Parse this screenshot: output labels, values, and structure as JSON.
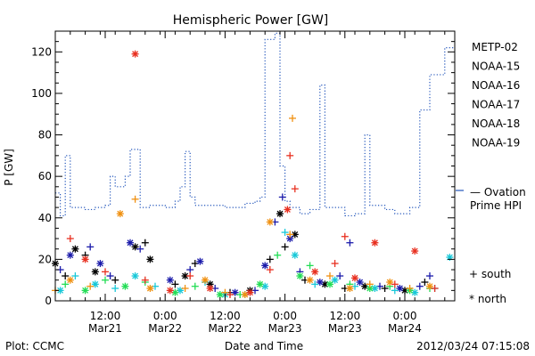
{
  "chart_data": {
    "type": "scatter",
    "title": "Hemispheric Power [GW]",
    "xlabel": "Date and Time",
    "ylabel": "P [GW]",
    "ylim": [
      0,
      130
    ],
    "y_ticks": [
      0,
      20,
      40,
      60,
      80,
      100,
      120
    ],
    "xlim": [
      "2012-03-21T02:00",
      "2012-03-24T10:00"
    ],
    "x_ticks": [
      {
        "t": "2012-03-21T12:00",
        "time": "12:00",
        "date": "Mar21"
      },
      {
        "t": "2012-03-22T00:00",
        "time": "0:00",
        "date": "Mar22"
      },
      {
        "t": "2012-03-22T12:00",
        "time": "12:00",
        "date": "Mar22"
      },
      {
        "t": "2012-03-23T00:00",
        "time": "0:00",
        "date": "Mar23"
      },
      {
        "t": "2012-03-23T12:00",
        "time": "12:00",
        "date": "Mar23"
      },
      {
        "t": "2012-03-24T00:00",
        "time": "0:00",
        "date": "Mar24"
      }
    ],
    "grid": false,
    "legend_position": "right",
    "footer_left": "Plot: CCMC",
    "footer_right": "2012/03/24 07:15:08",
    "marker_legend": [
      {
        "symbol": "+",
        "label": "south"
      },
      {
        "symbol": "*",
        "label": "north"
      }
    ],
    "series": [
      {
        "name": "METP-02",
        "color": "#000000",
        "points": [
          [
            "2012-03-21T02:00",
            18,
            "*"
          ],
          [
            "2012-03-21T04:00",
            12,
            "+"
          ],
          [
            "2012-03-21T06:00",
            25,
            "*"
          ],
          [
            "2012-03-21T08:00",
            22,
            "+"
          ],
          [
            "2012-03-21T10:00",
            14,
            "*"
          ],
          [
            "2012-03-21T14:00",
            10,
            "+"
          ],
          [
            "2012-03-21T18:00",
            26,
            "*"
          ],
          [
            "2012-03-21T20:00",
            28,
            "+"
          ],
          [
            "2012-03-21T21:00",
            20,
            "*"
          ],
          [
            "2012-03-22T02:00",
            8,
            "+"
          ],
          [
            "2012-03-22T04:00",
            12,
            "*"
          ],
          [
            "2012-03-22T06:00",
            18,
            "+"
          ],
          [
            "2012-03-22T09:00",
            8,
            "*"
          ],
          [
            "2012-03-22T13:00",
            4,
            "+"
          ],
          [
            "2012-03-22T17:00",
            5,
            "*"
          ],
          [
            "2012-03-22T21:00",
            20,
            "+"
          ],
          [
            "2012-03-22T23:00",
            42,
            "*"
          ],
          [
            "2012-03-23T00:00",
            26,
            "+"
          ],
          [
            "2012-03-23T02:00",
            32,
            "*"
          ],
          [
            "2012-03-23T04:00",
            10,
            "+"
          ],
          [
            "2012-03-23T08:00",
            8,
            "*"
          ],
          [
            "2012-03-23T12:00",
            6,
            "+"
          ],
          [
            "2012-03-23T16:00",
            7,
            "*"
          ],
          [
            "2012-03-23T20:00",
            6,
            "+"
          ],
          [
            "2012-03-24T00:00",
            5,
            "*"
          ],
          [
            "2012-03-24T04:00",
            9,
            "+"
          ]
        ]
      },
      {
        "name": "NOAA-15",
        "color": "#1a1aaa",
        "points": [
          [
            "2012-03-21T03:00",
            15,
            "+"
          ],
          [
            "2012-03-21T05:00",
            22,
            "*"
          ],
          [
            "2012-03-21T09:00",
            26,
            "+"
          ],
          [
            "2012-03-21T11:00",
            18,
            "*"
          ],
          [
            "2012-03-21T13:00",
            12,
            "+"
          ],
          [
            "2012-03-21T17:00",
            28,
            "*"
          ],
          [
            "2012-03-21T19:00",
            25,
            "+"
          ],
          [
            "2012-03-22T01:00",
            10,
            "*"
          ],
          [
            "2012-03-22T05:00",
            15,
            "+"
          ],
          [
            "2012-03-22T07:00",
            19,
            "*"
          ],
          [
            "2012-03-22T10:00",
            6,
            "+"
          ],
          [
            "2012-03-22T14:00",
            4,
            "*"
          ],
          [
            "2012-03-22T18:00",
            5,
            "+"
          ],
          [
            "2012-03-22T20:00",
            17,
            "*"
          ],
          [
            "2012-03-22T22:00",
            38,
            "+"
          ],
          [
            "2012-03-22T23:30",
            50,
            "+"
          ],
          [
            "2012-03-23T01:00",
            30,
            "*"
          ],
          [
            "2012-03-23T03:00",
            14,
            "+"
          ],
          [
            "2012-03-23T07:00",
            9,
            "*"
          ],
          [
            "2012-03-23T11:00",
            12,
            "+"
          ],
          [
            "2012-03-23T13:00",
            28,
            "+"
          ],
          [
            "2012-03-23T15:00",
            9,
            "*"
          ],
          [
            "2012-03-23T19:00",
            7,
            "+"
          ],
          [
            "2012-03-23T23:00",
            6,
            "*"
          ],
          [
            "2012-03-24T03:00",
            7,
            "+"
          ],
          [
            "2012-03-24T05:00",
            12,
            "+"
          ]
        ]
      },
      {
        "name": "NOAA-16",
        "color": "#18c8d8",
        "points": [
          [
            "2012-03-21T03:00",
            5,
            "*"
          ],
          [
            "2012-03-21T06:00",
            12,
            "+"
          ],
          [
            "2012-03-21T10:00",
            8,
            "*"
          ],
          [
            "2012-03-21T14:00",
            6,
            "+"
          ],
          [
            "2012-03-21T18:00",
            12,
            "*"
          ],
          [
            "2012-03-21T22:00",
            7,
            "+"
          ],
          [
            "2012-03-22T03:00",
            5,
            "*"
          ],
          [
            "2012-03-22T08:00",
            9,
            "+"
          ],
          [
            "2012-03-22T12:00",
            3,
            "*"
          ],
          [
            "2012-03-22T16:00",
            3,
            "+"
          ],
          [
            "2012-03-22T20:00",
            7,
            "*"
          ],
          [
            "2012-03-23T00:00",
            33,
            "+"
          ],
          [
            "2012-03-23T02:00",
            22,
            "*"
          ],
          [
            "2012-03-23T06:00",
            8,
            "+"
          ],
          [
            "2012-03-23T10:00",
            10,
            "*"
          ],
          [
            "2012-03-23T14:00",
            7,
            "+"
          ],
          [
            "2012-03-23T18:00",
            6,
            "*"
          ],
          [
            "2012-03-23T22:00",
            5,
            "+"
          ],
          [
            "2012-03-24T02:00",
            4,
            "*"
          ],
          [
            "2012-03-24T06:00",
            6,
            "+"
          ],
          [
            "2012-03-24T09:00",
            21,
            "*"
          ]
        ]
      },
      {
        "name": "NOAA-17",
        "color": "#22dd55",
        "points": [
          [
            "2012-03-21T04:00",
            8,
            "+"
          ],
          [
            "2012-03-21T08:00",
            5,
            "*"
          ],
          [
            "2012-03-21T12:00",
            10,
            "+"
          ],
          [
            "2012-03-21T16:00",
            7,
            "*"
          ],
          [
            "2012-03-21T20:00",
            9,
            "+"
          ],
          [
            "2012-03-22T02:00",
            4,
            "*"
          ],
          [
            "2012-03-22T06:00",
            7,
            "+"
          ],
          [
            "2012-03-22T11:00",
            3,
            "*"
          ],
          [
            "2012-03-22T15:00",
            3,
            "+"
          ],
          [
            "2012-03-22T19:00",
            8,
            "*"
          ],
          [
            "2012-03-22T22:30",
            22,
            "+"
          ],
          [
            "2012-03-23T03:00",
            12,
            "*"
          ],
          [
            "2012-03-23T05:00",
            17,
            "+"
          ],
          [
            "2012-03-23T09:00",
            8,
            "*"
          ],
          [
            "2012-03-23T13:00",
            8,
            "+"
          ],
          [
            "2012-03-23T17:00",
            6,
            "*"
          ],
          [
            "2012-03-23T21:00",
            7,
            "+"
          ],
          [
            "2012-03-24T01:00",
            5,
            "*"
          ],
          [
            "2012-03-24T05:00",
            6,
            "+"
          ]
        ]
      },
      {
        "name": "NOAA-18",
        "color": "#f09010",
        "points": [
          [
            "2012-03-21T02:00",
            5,
            "+"
          ],
          [
            "2012-03-21T05:00",
            10,
            "*"
          ],
          [
            "2012-03-21T09:00",
            7,
            "+"
          ],
          [
            "2012-03-21T15:00",
            42,
            "*"
          ],
          [
            "2012-03-21T18:00",
            49,
            "+"
          ],
          [
            "2012-03-21T21:00",
            6,
            "*"
          ],
          [
            "2012-03-22T04:00",
            6,
            "+"
          ],
          [
            "2012-03-22T08:00",
            10,
            "*"
          ],
          [
            "2012-03-22T12:00",
            4,
            "+"
          ],
          [
            "2012-03-22T16:00",
            3,
            "*"
          ],
          [
            "2012-03-22T21:00",
            38,
            "*"
          ],
          [
            "2012-03-23T01:00",
            32,
            "+"
          ],
          [
            "2012-03-23T01:30",
            88,
            "+"
          ],
          [
            "2012-03-23T05:00",
            10,
            "*"
          ],
          [
            "2012-03-23T09:00",
            12,
            "+"
          ],
          [
            "2012-03-23T13:00",
            6,
            "*"
          ],
          [
            "2012-03-23T17:00",
            8,
            "+"
          ],
          [
            "2012-03-23T21:00",
            9,
            "*"
          ],
          [
            "2012-03-24T01:00",
            6,
            "+"
          ],
          [
            "2012-03-24T05:00",
            7,
            "*"
          ]
        ]
      },
      {
        "name": "NOAA-19",
        "color": "#e83020",
        "points": [
          [
            "2012-03-21T05:00",
            30,
            "+"
          ],
          [
            "2012-03-21T08:00",
            20,
            "*"
          ],
          [
            "2012-03-21T12:00",
            14,
            "+"
          ],
          [
            "2012-03-21T18:00",
            119,
            "*"
          ],
          [
            "2012-03-21T20:00",
            10,
            "+"
          ],
          [
            "2012-03-22T01:00",
            5,
            "*"
          ],
          [
            "2012-03-22T05:00",
            12,
            "+"
          ],
          [
            "2012-03-22T09:00",
            6,
            "*"
          ],
          [
            "2012-03-22T13:00",
            3,
            "+"
          ],
          [
            "2012-03-22T17:00",
            4,
            "*"
          ],
          [
            "2012-03-22T21:00",
            15,
            "+"
          ],
          [
            "2012-03-23T00:30",
            44,
            "*"
          ],
          [
            "2012-03-23T01:00",
            70,
            "+"
          ],
          [
            "2012-03-23T02:00",
            54,
            "+"
          ],
          [
            "2012-03-23T06:00",
            14,
            "*"
          ],
          [
            "2012-03-23T10:00",
            18,
            "+"
          ],
          [
            "2012-03-23T12:00",
            31,
            "+"
          ],
          [
            "2012-03-23T14:00",
            11,
            "*"
          ],
          [
            "2012-03-23T18:00",
            28,
            "*"
          ],
          [
            "2012-03-23T22:00",
            8,
            "+"
          ],
          [
            "2012-03-24T02:00",
            24,
            "*"
          ],
          [
            "2012-03-24T06:00",
            6,
            "+"
          ]
        ]
      }
    ],
    "ovation": {
      "name": "— Ovation Prime HPI",
      "color": "#2255bb",
      "points": [
        [
          "2012-03-21T02:00",
          52
        ],
        [
          "2012-03-21T03:00",
          41
        ],
        [
          "2012-03-21T04:00",
          70
        ],
        [
          "2012-03-21T05:00",
          45
        ],
        [
          "2012-03-21T08:00",
          44
        ],
        [
          "2012-03-21T10:00",
          45
        ],
        [
          "2012-03-21T12:00",
          46
        ],
        [
          "2012-03-21T13:00",
          60
        ],
        [
          "2012-03-21T14:00",
          55
        ],
        [
          "2012-03-21T16:00",
          60
        ],
        [
          "2012-03-21T17:00",
          73
        ],
        [
          "2012-03-21T19:00",
          45
        ],
        [
          "2012-03-21T21:00",
          46
        ],
        [
          "2012-03-22T00:00",
          45
        ],
        [
          "2012-03-22T02:00",
          48
        ],
        [
          "2012-03-22T03:00",
          55
        ],
        [
          "2012-03-22T04:00",
          72
        ],
        [
          "2012-03-22T05:00",
          50
        ],
        [
          "2012-03-22T06:00",
          46
        ],
        [
          "2012-03-22T12:00",
          45
        ],
        [
          "2012-03-22T16:00",
          47
        ],
        [
          "2012-03-22T18:00",
          48
        ],
        [
          "2012-03-22T19:00",
          50
        ],
        [
          "2012-03-22T20:00",
          126
        ],
        [
          "2012-03-22T22:00",
          129
        ],
        [
          "2012-03-22T23:00",
          65
        ],
        [
          "2012-03-23T00:00",
          48
        ],
        [
          "2012-03-23T01:00",
          45
        ],
        [
          "2012-03-23T03:00",
          42
        ],
        [
          "2012-03-23T05:00",
          44
        ],
        [
          "2012-03-23T07:00",
          104
        ],
        [
          "2012-03-23T08:00",
          45
        ],
        [
          "2012-03-23T12:00",
          41
        ],
        [
          "2012-03-23T14:00",
          42
        ],
        [
          "2012-03-23T16:00",
          80
        ],
        [
          "2012-03-23T17:00",
          46
        ],
        [
          "2012-03-23T20:00",
          44
        ],
        [
          "2012-03-23T22:00",
          42
        ],
        [
          "2012-03-24T01:00",
          45
        ],
        [
          "2012-03-24T03:00",
          92
        ],
        [
          "2012-03-24T05:00",
          109
        ],
        [
          "2012-03-24T08:00",
          122
        ],
        [
          "2012-03-24T10:00",
          122
        ]
      ]
    },
    "colors": {
      "axis": "#000000",
      "ovation": "#2255bb"
    }
  }
}
